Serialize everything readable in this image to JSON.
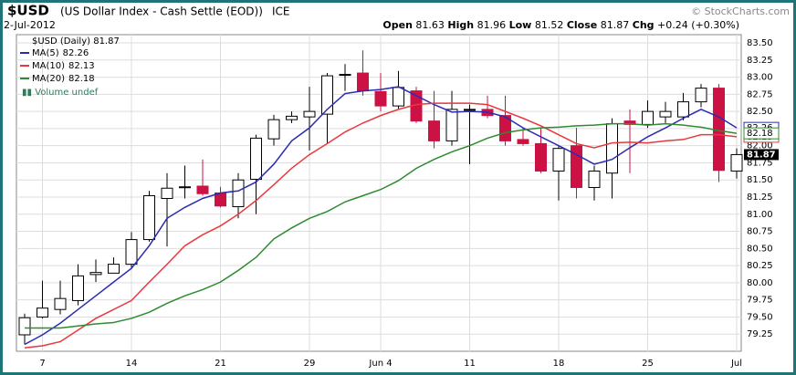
{
  "chart_data": {
    "type": "candlestick",
    "title": "$USD",
    "subtitle": "(US Dollar Index - Cash Settle (EOD))",
    "exchange": "ICE",
    "source": "© StockCharts.com",
    "date": "2-Jul-2012",
    "stat_labels": {
      "open": "Open",
      "high": "High",
      "low": "Low",
      "close": "Close",
      "change": "Chg"
    },
    "change": "+0.24 (+0.30%)",
    "price_label": "$USD (Daily)",
    "volume_label": "Volume undef",
    "categories": [
      null,
      "7",
      null,
      null,
      null,
      null,
      "14",
      null,
      null,
      null,
      null,
      "21",
      null,
      null,
      null,
      null,
      "29",
      null,
      null,
      null,
      "Jun 4",
      null,
      null,
      null,
      null,
      "11",
      null,
      null,
      null,
      null,
      "18",
      null,
      null,
      null,
      null,
      "25",
      null,
      null,
      null,
      null,
      "Jul"
    ],
    "open": [
      79.24,
      79.5,
      79.61,
      79.74,
      80.12,
      80.14,
      80.27,
      80.63,
      81.23,
      81.4,
      81.41,
      81.31,
      81.11,
      81.51,
      82.1,
      82.38,
      82.42,
      82.46,
      83.03,
      83.06,
      82.79,
      82.58,
      82.8,
      82.36,
      82.07,
      82.52,
      82.53,
      82.44,
      82.09,
      82.03,
      81.63,
      82.0,
      81.39,
      81.6,
      82.36,
      82.31,
      82.42,
      82.42,
      82.64,
      82.84,
      81.63
    ],
    "high": [
      79.55,
      80.03,
      80.03,
      80.27,
      80.34,
      80.37,
      80.74,
      81.34,
      81.6,
      81.71,
      81.8,
      81.4,
      81.6,
      82.16,
      82.45,
      82.5,
      82.86,
      83.06,
      83.19,
      83.39,
      83.06,
      83.09,
      82.86,
      82.8,
      82.8,
      82.6,
      82.73,
      82.73,
      82.26,
      82.26,
      82.0,
      82.26,
      81.71,
      82.4,
      82.53,
      82.66,
      82.64,
      82.77,
      82.9,
      82.9,
      81.96
    ],
    "low": [
      79.1,
      79.48,
      79.54,
      79.67,
      80.01,
      80.14,
      80.21,
      80.6,
      80.53,
      81.23,
      81.27,
      81.1,
      80.94,
      81.0,
      82.0,
      82.33,
      81.93,
      82.03,
      82.8,
      82.73,
      82.5,
      82.53,
      82.33,
      81.96,
      82.0,
      81.73,
      82.4,
      82.0,
      82.0,
      81.6,
      81.2,
      81.23,
      81.2,
      81.23,
      81.6,
      82.26,
      82.33,
      82.37,
      82.56,
      81.47,
      81.52
    ],
    "close": [
      79.49,
      79.63,
      79.77,
      80.1,
      80.15,
      80.27,
      80.63,
      81.27,
      81.38,
      81.4,
      81.3,
      81.12,
      81.5,
      82.11,
      82.38,
      82.43,
      82.5,
      83.02,
      83.04,
      82.8,
      82.58,
      82.85,
      82.36,
      82.07,
      82.53,
      82.53,
      82.44,
      82.07,
      82.03,
      81.63,
      81.96,
      81.39,
      81.63,
      82.32,
      82.31,
      82.5,
      82.5,
      82.64,
      82.84,
      81.64,
      81.87
    ],
    "up_color": "#000000",
    "down_color": "#cc1144",
    "series": [
      {
        "name": "MA(5)",
        "color": "#2b2bb0",
        "values": [
          79.1,
          79.24,
          79.41,
          79.61,
          79.81,
          80.01,
          80.21,
          80.54,
          80.94,
          81.1,
          81.23,
          81.31,
          81.34,
          81.47,
          81.73,
          82.07,
          82.26,
          82.53,
          82.76,
          82.8,
          82.82,
          82.86,
          82.73,
          82.6,
          82.49,
          82.5,
          82.49,
          82.42,
          82.26,
          82.13,
          82.0,
          81.87,
          81.73,
          81.8,
          81.97,
          82.13,
          82.26,
          82.4,
          82.53,
          82.42,
          82.26
        ]
      },
      {
        "name": "MA(10)",
        "color": "#e8383d",
        "values": [
          79.05,
          79.08,
          79.14,
          79.31,
          79.48,
          79.61,
          79.74,
          80.01,
          80.27,
          80.54,
          80.7,
          80.83,
          81.0,
          81.2,
          81.43,
          81.67,
          81.87,
          82.03,
          82.2,
          82.33,
          82.44,
          82.53,
          82.6,
          82.62,
          82.62,
          82.62,
          82.6,
          82.5,
          82.4,
          82.29,
          82.16,
          82.03,
          81.97,
          82.04,
          82.05,
          82.04,
          82.07,
          82.09,
          82.16,
          82.16,
          82.13
        ]
      },
      {
        "name": "MA(20)",
        "color": "#2e8b2e",
        "values": [
          79.34,
          79.34,
          79.34,
          79.37,
          79.4,
          79.42,
          79.48,
          79.57,
          79.7,
          79.81,
          79.9,
          80.01,
          80.18,
          80.37,
          80.64,
          80.8,
          80.94,
          81.04,
          81.18,
          81.27,
          81.36,
          81.49,
          81.67,
          81.8,
          81.91,
          82.0,
          82.11,
          82.19,
          82.23,
          82.26,
          82.27,
          82.29,
          82.3,
          82.32,
          82.32,
          82.3,
          82.32,
          82.3,
          82.27,
          82.22,
          82.18
        ]
      }
    ],
    "ylim": [
      79.0,
      83.62
    ],
    "yticks": [
      79.25,
      {
        "value": 79.5,
        "label": "79.50"
      },
      79.75,
      {
        "value": 80,
        "label": "80.00"
      },
      80.25,
      {
        "value": 80.5,
        "label": "80.50"
      },
      80.75,
      {
        "value": 81,
        "label": "81.00"
      },
      81.25,
      {
        "value": 81.5,
        "label": "81.50"
      },
      81.75,
      {
        "value": 82,
        "label": "82.00"
      },
      82.25,
      {
        "value": 82.5,
        "label": "82.50"
      },
      82.75,
      {
        "value": 83,
        "label": "83.00"
      },
      83.25,
      {
        "value": 83.5,
        "label": "83.50"
      }
    ],
    "grid": true,
    "frame_color": "#1f7575"
  }
}
